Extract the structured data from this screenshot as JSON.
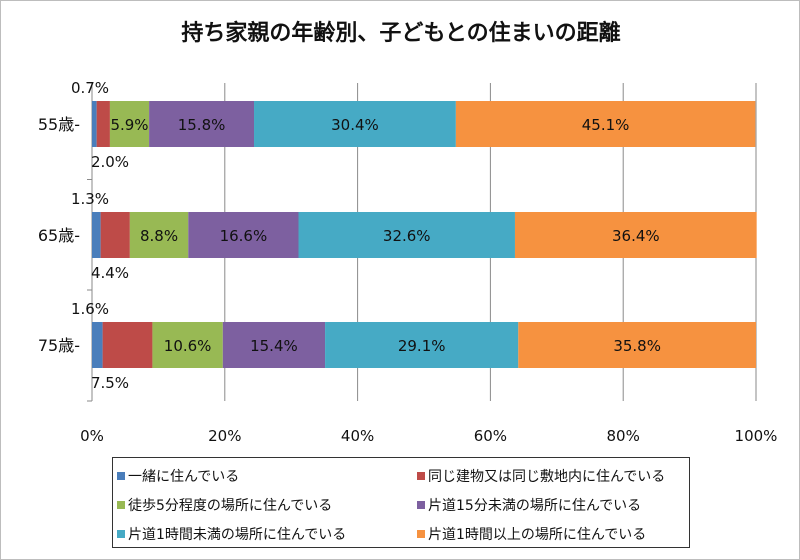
{
  "chart_data": {
    "type": "bar",
    "orientation": "horizontal",
    "stacked": "percent",
    "title": "持ち家親の年齢別、子どもとの住まいの距離",
    "categories": [
      "55歳-",
      "65歳-",
      "75歳-"
    ],
    "xlim": [
      0,
      100
    ],
    "x_ticks": [
      "0%",
      "20%",
      "40%",
      "60%",
      "80%",
      "100%"
    ],
    "grid": "vertical",
    "legend_position": "bottom",
    "series": [
      {
        "name": "一緒に住んでいる",
        "color": "#4a7ebb",
        "values": [
          0.7,
          1.3,
          1.6
        ],
        "labels": [
          "0.7%",
          "1.3%",
          "1.6%"
        ]
      },
      {
        "name": "同じ建物又は同じ敷地内に住んでいる",
        "color": "#be4b48",
        "values": [
          2.0,
          4.4,
          7.5
        ],
        "labels": [
          "2.0%",
          "4.4%",
          "7.5%"
        ]
      },
      {
        "name": "徒歩5分程度の場所に住んでいる",
        "color": "#98b954",
        "values": [
          5.9,
          8.8,
          10.6
        ],
        "labels": [
          "5.9%",
          "8.8%",
          "10.6%"
        ]
      },
      {
        "name": "片道15分未満の場所に住んでいる",
        "color": "#7d60a0",
        "values": [
          15.8,
          16.6,
          15.4
        ],
        "labels": [
          "15.8%",
          "16.6%",
          "15.4%"
        ]
      },
      {
        "name": "片道1時間未満の場所に住んでいる",
        "color": "#46aac5",
        "values": [
          30.4,
          32.6,
          29.1
        ],
        "labels": [
          "30.4%",
          "32.6%",
          "29.1%"
        ]
      },
      {
        "name": "片道1時間以上の場所に住んでいる",
        "color": "#f69240",
        "values": [
          45.1,
          36.4,
          35.8
        ],
        "labels": [
          "45.1%",
          "36.4%",
          "35.8%"
        ]
      }
    ]
  }
}
